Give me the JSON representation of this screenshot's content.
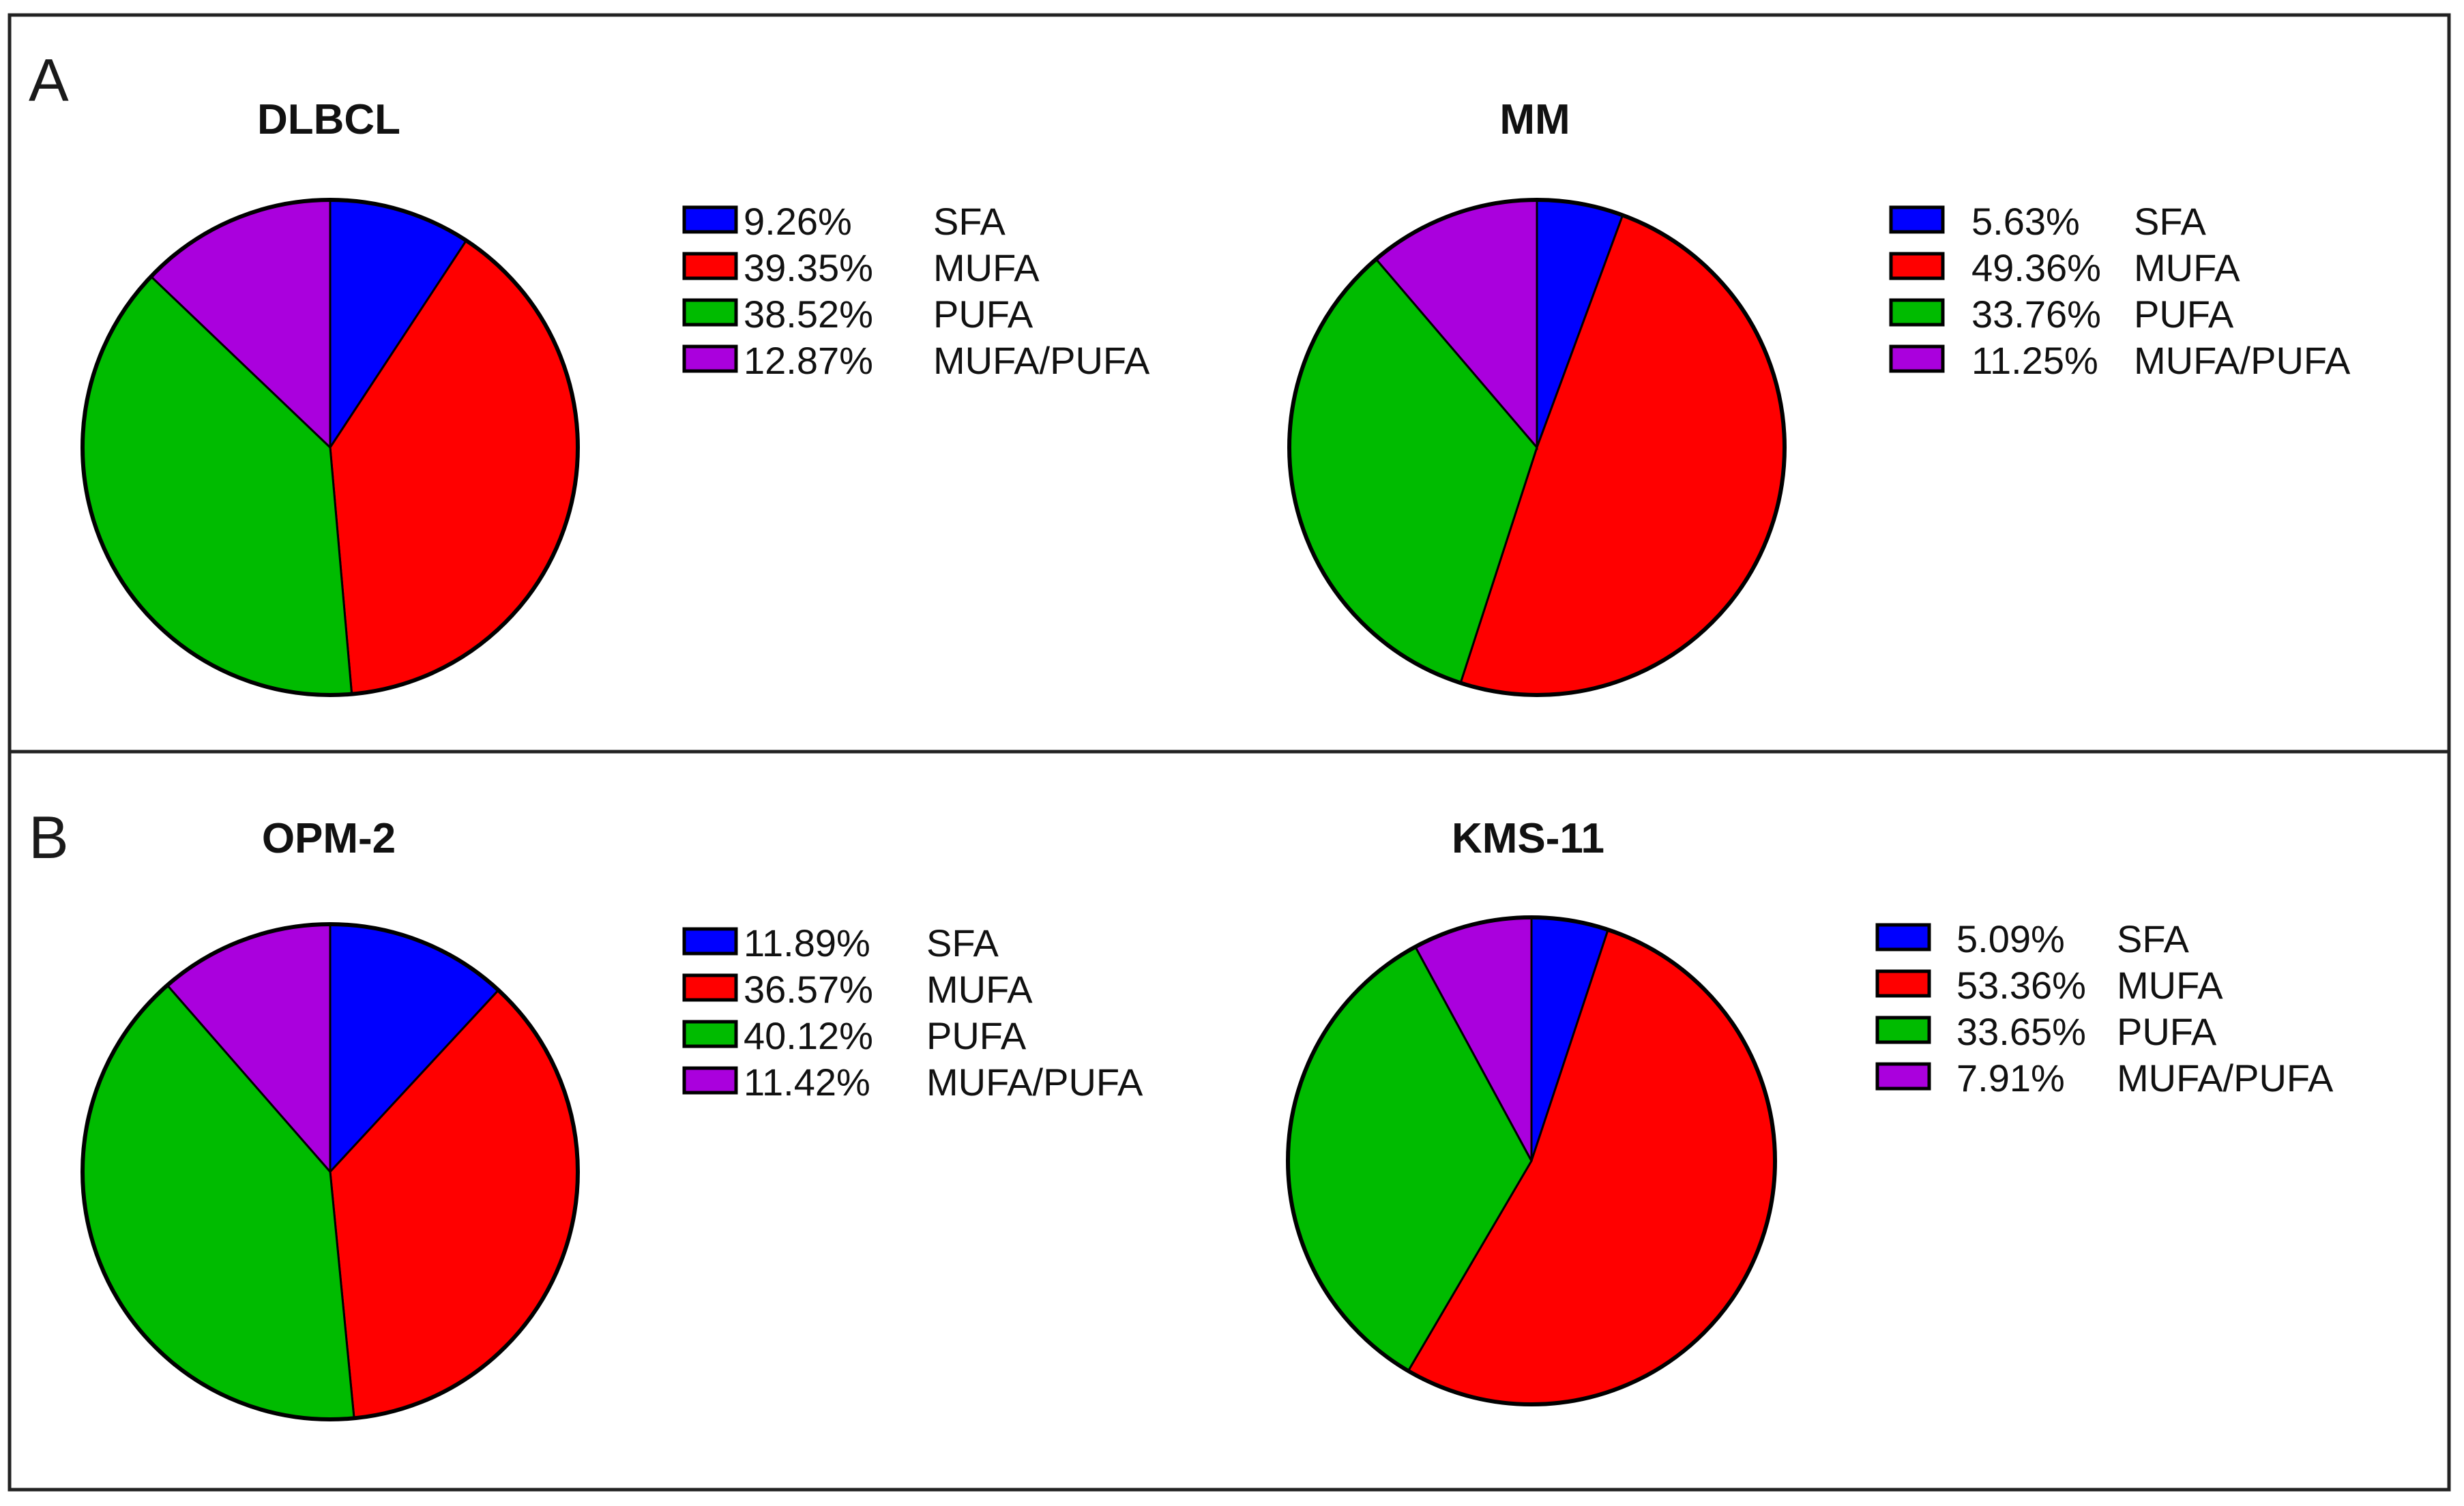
{
  "panels": [
    {
      "letter": "A"
    },
    {
      "letter": "B"
    }
  ],
  "chart_data": [
    {
      "type": "pie",
      "title": "DLBCL",
      "categories": [
        "SFA",
        "MUFA",
        "PUFA",
        "MUFA/PUFA"
      ],
      "values": [
        9.26,
        39.35,
        38.52,
        12.87
      ],
      "value_labels": [
        "9.26%",
        "39.35%",
        "38.52%",
        "12.87%"
      ],
      "colors": [
        "#0000ff",
        "#ff0000",
        "#00bb00",
        "#aa00dd"
      ],
      "legend_position": "right"
    },
    {
      "type": "pie",
      "title": "MM",
      "categories": [
        "SFA",
        "MUFA",
        "PUFA",
        "MUFA/PUFA"
      ],
      "values": [
        5.63,
        49.36,
        33.76,
        11.25
      ],
      "value_labels": [
        "5.63%",
        "49.36%",
        "33.76%",
        "11.25%"
      ],
      "colors": [
        "#0000ff",
        "#ff0000",
        "#00bb00",
        "#aa00dd"
      ],
      "legend_position": "right"
    },
    {
      "type": "pie",
      "title": "OPM-2",
      "categories": [
        "SFA",
        "MUFA",
        "PUFA",
        "MUFA/PUFA"
      ],
      "values": [
        11.89,
        36.57,
        40.12,
        11.42
      ],
      "value_labels": [
        "11.89%",
        "36.57%",
        "40.12%",
        "11.42%"
      ],
      "colors": [
        "#0000ff",
        "#ff0000",
        "#00bb00",
        "#aa00dd"
      ],
      "legend_position": "right"
    },
    {
      "type": "pie",
      "title": "KMS-11",
      "categories": [
        "SFA",
        "MUFA",
        "PUFA",
        "MUFA/PUFA"
      ],
      "values": [
        5.09,
        53.36,
        33.65,
        7.91
      ],
      "value_labels": [
        "5.09%",
        "53.36%",
        "33.65%",
        "7.91%"
      ],
      "colors": [
        "#0000ff",
        "#ff0000",
        "#00bb00",
        "#aa00dd"
      ],
      "legend_position": "right"
    }
  ]
}
